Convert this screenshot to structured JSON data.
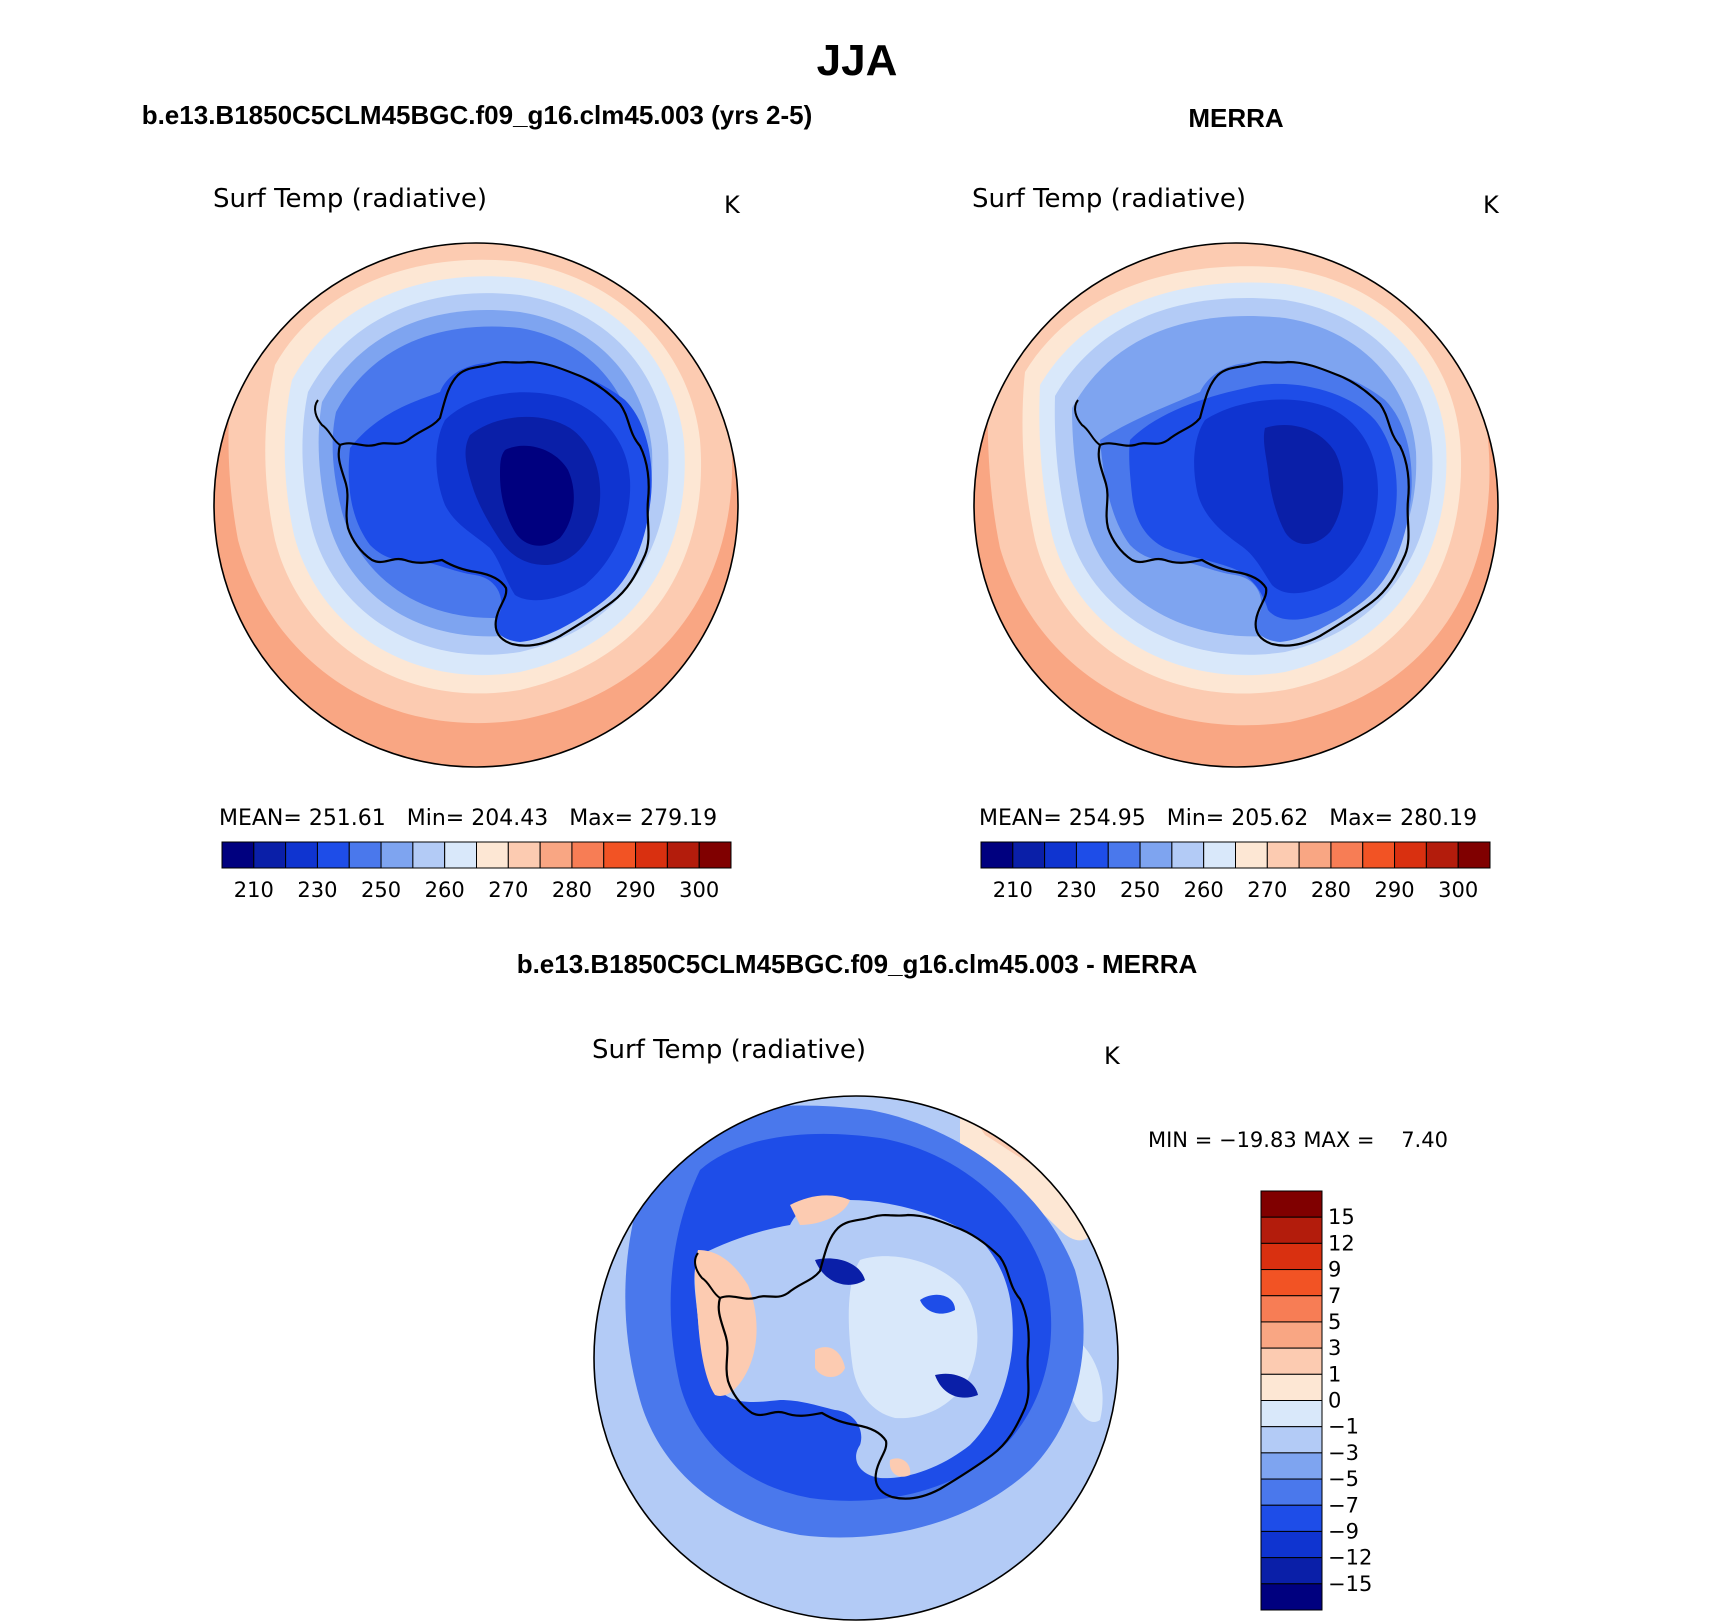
{
  "figure": {
    "title": "JJA",
    "panel_model_title": "b.e13.B1850C5CLM45BGC.f09_g16.clm45.003 (yrs 2-5)",
    "panel_obs_title": "MERRA",
    "panel_diff_title": "b.e13.B1850C5CLM45BGC.f09_g16.clm45.003 - MERRA"
  },
  "panels": [
    {
      "id": "model",
      "variable": "Surf Temp (radiative)",
      "units": "K",
      "stats_text": "MEAN= 251.61   Min= 204.43   Max= 279.19",
      "stats": {
        "mean": 251.61,
        "min": 204.43,
        "max": 279.19
      }
    },
    {
      "id": "obs",
      "variable": "Surf Temp (radiative)",
      "units": "K",
      "stats_text": "MEAN= 254.95   Min= 205.62   Max= 280.19",
      "stats": {
        "mean": 254.95,
        "min": 205.62,
        "max": 280.19
      }
    },
    {
      "id": "diff",
      "variable": "Surf Temp (radiative)",
      "units": "K",
      "stats_text": "MIN = −19.83 MAX =    7.40",
      "stats": {
        "min": -19.83,
        "max": 7.4
      }
    }
  ],
  "abs_colorbar": {
    "tick_labels": [
      "210",
      "230",
      "250",
      "260",
      "270",
      "280",
      "290",
      "300"
    ],
    "colors": [
      "#00007f",
      "#0a1fa8",
      "#0f34d0",
      "#1e4de8",
      "#4a78ec",
      "#7ea4f0",
      "#b3cbf6",
      "#d9e8fa",
      "#fde7d4",
      "#fccbb1",
      "#f9a683",
      "#f77d55",
      "#f25324",
      "#d93010",
      "#b31c0c",
      "#800000"
    ]
  },
  "diff_colorbar": {
    "tick_labels": [
      "15",
      "12",
      "9",
      "7",
      "5",
      "3",
      "1",
      "0",
      "−1",
      "−3",
      "−5",
      "−7",
      "−9",
      "−12",
      "−15"
    ],
    "colors": [
      "#800000",
      "#b31c0c",
      "#d93010",
      "#f25324",
      "#f77d55",
      "#f9a683",
      "#fccbb1",
      "#fde7d4",
      "#d9e8fa",
      "#b3cbf6",
      "#7ea4f0",
      "#4a78ec",
      "#1e4de8",
      "#0f34d0",
      "#0a1fa8",
      "#00007f"
    ]
  },
  "colors": {
    "ocean_warm": "#f9a683",
    "ocean_mild": "#fccbb1",
    "pale_warm": "#fde7d4",
    "pale_cool": "#d9e8fa",
    "light_blue": "#b3cbf6",
    "mid_blue": "#7ea4f0",
    "blue": "#4a78ec",
    "deep_blue": "#1e4de8",
    "deeper_blue": "#0f34d0",
    "navy": "#0a1fa8",
    "darkest": "#00007f",
    "warm_anomaly": "#f9a683"
  }
}
